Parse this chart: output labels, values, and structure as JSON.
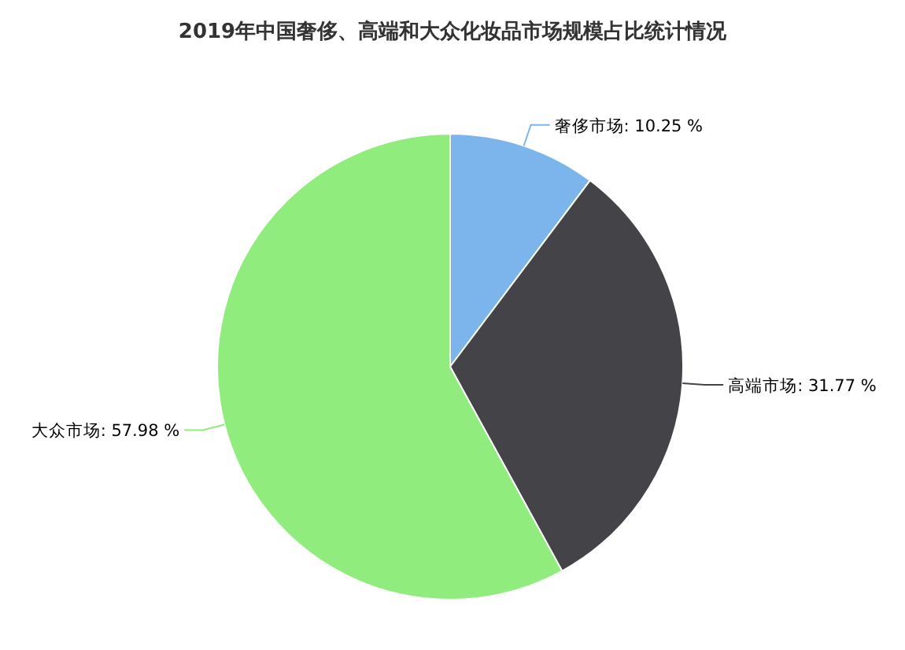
{
  "chart_data": {
    "type": "pie",
    "title": "2019年中国奢侈、高端和大众化妆品市场规模占比统计情况",
    "categories": [
      "奢侈市场",
      "高端市场",
      "大众市场"
    ],
    "values": [
      10.25,
      31.77,
      57.98
    ],
    "colors": [
      "#7cb5ec",
      "#434348",
      "#90ed7d"
    ],
    "value_labels": [
      "10.25 %",
      "31.77 %",
      "57.98 %"
    ]
  }
}
